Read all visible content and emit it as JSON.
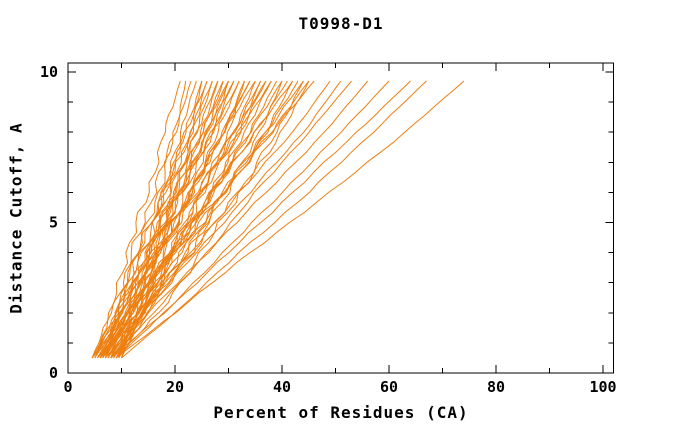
{
  "chart_data": {
    "type": "line",
    "title": "T0998-D1",
    "xlabel": "Percent of Residues (CA)",
    "ylabel": "Distance Cutoff, A",
    "xlim": [
      0,
      102
    ],
    "ylim": [
      0,
      10.3
    ],
    "xticks": [
      0,
      20,
      40,
      60,
      80,
      100
    ],
    "xminor": [
      10,
      30,
      50,
      70,
      90
    ],
    "yticks": [
      0,
      5,
      10
    ],
    "yminor": [
      1,
      2,
      3,
      4,
      6,
      7,
      8,
      9
    ],
    "grid": false,
    "legend": "none",
    "line_color": "#ed7f11",
    "frame_color": "#000000",
    "y_levels": [
      0.5,
      2,
      4,
      6,
      8,
      9.7
    ],
    "curves": [
      [
        5,
        8,
        11,
        15,
        18,
        21
      ],
      [
        6,
        10,
        13,
        17,
        20,
        22
      ],
      [
        7,
        9,
        12,
        16,
        20,
        23
      ],
      [
        8,
        11,
        14,
        18,
        21,
        24
      ],
      [
        9,
        13,
        16,
        20,
        23,
        25
      ],
      [
        10,
        12,
        15,
        18,
        22,
        25
      ],
      [
        4.5,
        8,
        13,
        18,
        22,
        26
      ],
      [
        5.5,
        10,
        15,
        19,
        23,
        26
      ],
      [
        6.5,
        9,
        13,
        18,
        23,
        27
      ],
      [
        7.5,
        11,
        15,
        19,
        24,
        27
      ],
      [
        8.5,
        13,
        17,
        21,
        25,
        28
      ],
      [
        9.5,
        12,
        16,
        20,
        24,
        28
      ],
      [
        5,
        9,
        14,
        20,
        25,
        29
      ],
      [
        6,
        11,
        16,
        21,
        26,
        29
      ],
      [
        7,
        10,
        15,
        20,
        25,
        30
      ],
      [
        8,
        12,
        17,
        21,
        26,
        30
      ],
      [
        9,
        14,
        18,
        23,
        27,
        30
      ],
      [
        10,
        13,
        17,
        22,
        27,
        31
      ],
      [
        4.5,
        9,
        15,
        21,
        26,
        31
      ],
      [
        5.5,
        11,
        17,
        23,
        28,
        32
      ],
      [
        6.5,
        10,
        15,
        21,
        27,
        32
      ],
      [
        7.5,
        12,
        17,
        23,
        29,
        33
      ],
      [
        8.5,
        14,
        20,
        25,
        30,
        33
      ],
      [
        9.5,
        13,
        18,
        23,
        29,
        34
      ],
      [
        5,
        10,
        16,
        23,
        29,
        34
      ],
      [
        6,
        12,
        19,
        25,
        31,
        35
      ],
      [
        7,
        11,
        16,
        23,
        29,
        35
      ],
      [
        8,
        13,
        19,
        25,
        31,
        36
      ],
      [
        9,
        15,
        21,
        27,
        32,
        36
      ],
      [
        10,
        14,
        19,
        25,
        32,
        37
      ],
      [
        4.5,
        10,
        17,
        24,
        31,
        37
      ],
      [
        5.5,
        13,
        20,
        27,
        33,
        38
      ],
      [
        6.5,
        11,
        17,
        24,
        32,
        38
      ],
      [
        7.5,
        13,
        20,
        27,
        34,
        39
      ],
      [
        8.5,
        15,
        23,
        29,
        36,
        40
      ],
      [
        9.5,
        14,
        20,
        27,
        34,
        40
      ],
      [
        5,
        11,
        19,
        27,
        35,
        41
      ],
      [
        6,
        14,
        22,
        30,
        37,
        42
      ],
      [
        7,
        12,
        19,
        27,
        35,
        42
      ],
      [
        8,
        14,
        22,
        29,
        37,
        43
      ],
      [
        9,
        17,
        25,
        32,
        39,
        44
      ],
      [
        10,
        14,
        21,
        29,
        37,
        44
      ],
      [
        4.5,
        11,
        20,
        29,
        38,
        45
      ],
      [
        5.5,
        14,
        23,
        32,
        40,
        45
      ],
      [
        6.5,
        12,
        19,
        29,
        38,
        46
      ],
      [
        6,
        13,
        23,
        32,
        42,
        49
      ],
      [
        7,
        14,
        24,
        34,
        44,
        51
      ],
      [
        8,
        16,
        26,
        35,
        45,
        53
      ],
      [
        7,
        15,
        26,
        37,
        48,
        56
      ],
      [
        9,
        18,
        29,
        40,
        51,
        60
      ],
      [
        8,
        18,
        30,
        42,
        54,
        64
      ],
      [
        10,
        20,
        32,
        45,
        57,
        67
      ],
      [
        9,
        20,
        34,
        49,
        63,
        74
      ]
    ]
  }
}
